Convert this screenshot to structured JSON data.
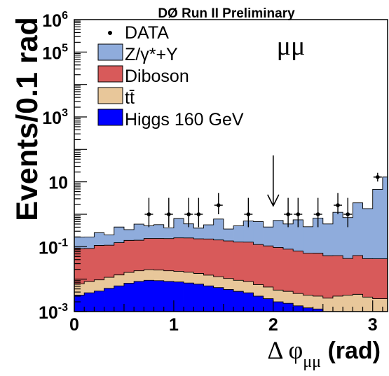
{
  "chart_data": {
    "type": "histogram",
    "title": "DØ Run II Preliminary",
    "channel_label": "μμ",
    "xlabel": "Δ φ_μμ (rad)",
    "xlabel_parts": {
      "delta_phi": "Δ φ",
      "sub": "μμ",
      "unit": " (rad)"
    },
    "ylabel": "Events/0.1 rad",
    "y_scale": "log",
    "xlim": [
      0,
      3.15
    ],
    "ylim_exponents": [
      -3,
      6
    ],
    "x_ticks": [
      0,
      1,
      2,
      3
    ],
    "x_tick_labels": [
      "0",
      "1",
      "2",
      "3"
    ],
    "y_ticks": [
      {
        "value": 0.001,
        "base": "10",
        "exp": "-3"
      },
      {
        "value": 0.1,
        "base": "10",
        "exp": "-1"
      },
      {
        "value": 10,
        "base": "10",
        "exp": ""
      },
      {
        "value": 1000.0,
        "base": "10",
        "exp": "3"
      },
      {
        "value": 100000.0,
        "base": "10",
        "exp": "5"
      },
      {
        "value": 1000000.0,
        "base": "10",
        "exp": "6"
      }
    ],
    "bin_edges": [
      0.0,
      0.1,
      0.2,
      0.3,
      0.4,
      0.5,
      0.6,
      0.7,
      0.8,
      0.9,
      1.0,
      1.1,
      1.2,
      1.3,
      1.4,
      1.5,
      1.6,
      1.7,
      1.8,
      1.9,
      2.0,
      2.1,
      2.2,
      2.3,
      2.4,
      2.5,
      2.6,
      2.7,
      2.8,
      2.9,
      3.0,
      3.1,
      3.15
    ],
    "series": [
      {
        "name": "Higgs 160 GeV",
        "color": "#0000ff",
        "values": [
          0.0032,
          0.0038,
          0.0043,
          0.0052,
          0.0062,
          0.0075,
          0.0085,
          0.0092,
          0.009,
          0.0085,
          0.0082,
          0.0076,
          0.007,
          0.0062,
          0.0055,
          0.0048,
          0.0042,
          0.0038,
          0.003,
          0.0025,
          0.002,
          0.0018,
          0.0015,
          0.0013,
          0.0012,
          0.001,
          0.001,
          0.001,
          0.001,
          0.001,
          0.001,
          0.001
        ]
      },
      {
        "name": "tt̄",
        "color": "#e8c79a",
        "values": [
          0.004,
          0.0046,
          0.0052,
          0.0062,
          0.0073,
          0.0086,
          0.0096,
          0.0103,
          0.0101,
          0.0096,
          0.0092,
          0.0087,
          0.008,
          0.0071,
          0.0064,
          0.0057,
          0.005,
          0.0046,
          0.0038,
          0.0032,
          0.0026,
          0.0024,
          0.0021,
          0.0019,
          0.0018,
          0.0016,
          0.002,
          0.0022,
          0.0024,
          0.0018,
          0.0015,
          0.0015
        ]
      },
      {
        "name": "Diboson",
        "color": "#d85a5a",
        "values": [
          0.08,
          0.08,
          0.1,
          0.1,
          0.12,
          0.14,
          0.14,
          0.16,
          0.16,
          0.16,
          0.17,
          0.17,
          0.16,
          0.16,
          0.15,
          0.14,
          0.13,
          0.13,
          0.11,
          0.1,
          0.09,
          0.08,
          0.07,
          0.06,
          0.06,
          0.05,
          0.05,
          0.04,
          0.05,
          0.04,
          0.04,
          0.04
        ]
      },
      {
        "name": "Z/γ*+Υ",
        "color": "#8facdc",
        "values": [
          0.11,
          0.11,
          0.16,
          0.12,
          0.27,
          0.18,
          0.34,
          0.26,
          0.3,
          0.2,
          0.55,
          0.32,
          0.2,
          0.3,
          0.55,
          0.2,
          0.3,
          0.48,
          0.48,
          0.3,
          0.55,
          0.42,
          0.6,
          0.35,
          0.7,
          0.45,
          1.1,
          0.75,
          2.2,
          1.45,
          5.8,
          14.0
        ]
      }
    ],
    "data": {
      "name": "DATA",
      "points": [
        {
          "x": 0.75,
          "y": 1.0,
          "err": [
            0.6,
            2.2
          ]
        },
        {
          "x": 0.95,
          "y": 1.0,
          "err": [
            0.6,
            2.2
          ]
        },
        {
          "x": 1.15,
          "y": 1.0,
          "err": [
            0.6,
            2.2
          ]
        },
        {
          "x": 1.25,
          "y": 1.0,
          "err": [
            0.6,
            2.2
          ]
        },
        {
          "x": 1.45,
          "y": 1.9,
          "err": [
            0.9,
            2.6
          ]
        },
        {
          "x": 1.75,
          "y": 1.0,
          "err": [
            0.6,
            2.2
          ]
        },
        {
          "x": 2.15,
          "y": 1.0,
          "err": [
            0.6,
            2.2
          ]
        },
        {
          "x": 2.25,
          "y": 1.0,
          "err": [
            0.6,
            2.2
          ]
        },
        {
          "x": 2.45,
          "y": 1.0,
          "err": [
            0.6,
            2.2
          ]
        },
        {
          "x": 2.65,
          "y": 1.9,
          "err": [
            0.9,
            2.6
          ]
        },
        {
          "x": 2.75,
          "y": 1.0,
          "err": [
            0.6,
            2.2
          ]
        },
        {
          "x": 3.05,
          "y": 14.0,
          "err": [
            3.8,
            5.0
          ]
        }
      ]
    },
    "arrow": {
      "x": 2.0
    },
    "legend": {
      "placement": "top-left",
      "entries": [
        {
          "label": "DATA",
          "marker": "dot",
          "color": "#000000"
        },
        {
          "label": "Z/γ*+Υ",
          "marker": "box",
          "color": "#8facdc"
        },
        {
          "label": "Diboson",
          "marker": "box",
          "color": "#d85a5a"
        },
        {
          "label": "tt̄",
          "marker": "box",
          "color": "#e8c79a"
        },
        {
          "label": "Higgs 160 GeV",
          "marker": "box",
          "color": "#0000ff"
        }
      ]
    }
  }
}
